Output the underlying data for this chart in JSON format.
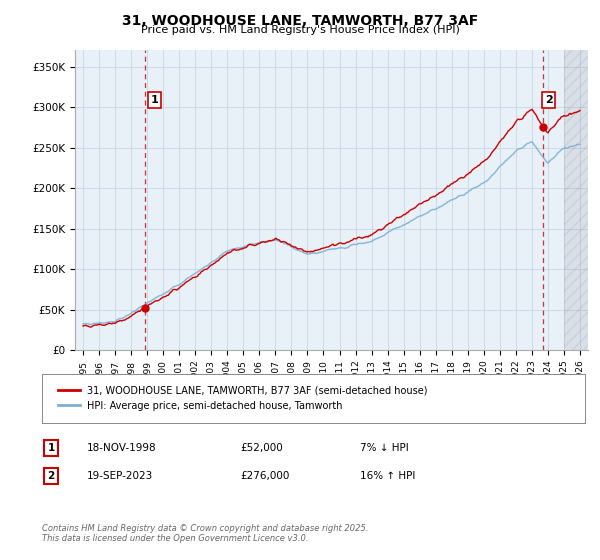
{
  "title": "31, WOODHOUSE LANE, TAMWORTH, B77 3AF",
  "subtitle": "Price paid vs. HM Land Registry's House Price Index (HPI)",
  "ylabel_ticks": [
    "£0",
    "£50K",
    "£100K",
    "£150K",
    "£200K",
    "£250K",
    "£300K",
    "£350K"
  ],
  "ytick_values": [
    0,
    50000,
    100000,
    150000,
    200000,
    250000,
    300000,
    350000
  ],
  "ylim": [
    0,
    370000
  ],
  "xlim_start": 1994.5,
  "xlim_end": 2026.5,
  "sale1_year": 1998.88,
  "sale1_price": 52000,
  "sale1_label": "1",
  "sale2_year": 2023.72,
  "sale2_price": 276000,
  "sale2_label": "2",
  "hpi_color": "#7bafd4",
  "price_color": "#cc0000",
  "grid_color": "#c8d4e8",
  "background_color": "#e8f0f8",
  "legend_label_price": "31, WOODHOUSE LANE, TAMWORTH, B77 3AF (semi-detached house)",
  "legend_label_hpi": "HPI: Average price, semi-detached house, Tamworth",
  "note1_label": "1",
  "note1_date": "18-NOV-1998",
  "note1_price": "£52,000",
  "note1_hpi": "7% ↓ HPI",
  "note2_label": "2",
  "note2_date": "19-SEP-2023",
  "note2_price": "£276,000",
  "note2_hpi": "16% ↑ HPI",
  "footer": "Contains HM Land Registry data © Crown copyright and database right 2025.\nThis data is licensed under the Open Government Licence v3.0."
}
